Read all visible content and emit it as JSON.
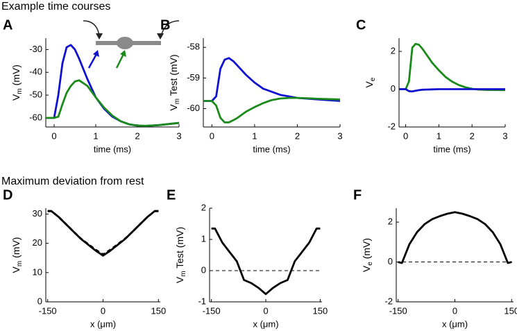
{
  "section_titles": [
    "Example time courses",
    "Maximum deviation from rest"
  ],
  "chart_data": [
    {
      "type": "line",
      "panel_label": "A",
      "xlabel": "time (ms)",
      "ylabel": [
        "V",
        "m",
        " (mV)"
      ],
      "x": [
        -0.2,
        0,
        0.1,
        0.2,
        0.3,
        0.4,
        0.5,
        0.6,
        0.8,
        1.0,
        1.2,
        1.4,
        1.6,
        1.8,
        2.0,
        2.2,
        2.5,
        3.0
      ],
      "series": [
        {
          "color": "#1010d0",
          "values": [
            -60,
            -60,
            -50,
            -36,
            -29,
            -28,
            -30,
            -34,
            -43,
            -51,
            -56,
            -59.5,
            -61.5,
            -62.8,
            -63.4,
            -63.5,
            -63.2,
            -62.2
          ]
        },
        {
          "color": "#1a8a1a",
          "values": [
            -60,
            -60,
            -59.5,
            -54,
            -49,
            -46,
            -44,
            -43.5,
            -46,
            -51,
            -55.5,
            -59,
            -61.5,
            -62.8,
            -63.4,
            -63.5,
            -63.2,
            -62.2
          ]
        }
      ],
      "xlim": [
        -0.2,
        3
      ],
      "ylim": [
        -64,
        -25
      ],
      "xticks": [
        0,
        1,
        2,
        3
      ],
      "yticks": [
        -60,
        -50,
        -40,
        -30
      ]
    },
    {
      "type": "line",
      "panel_label": "B",
      "xlabel": "time (ms)",
      "ylabel": [
        "V",
        "m",
        " Test (mV)"
      ],
      "x": [
        -0.2,
        0,
        0.1,
        0.2,
        0.3,
        0.4,
        0.5,
        0.6,
        0.8,
        1.0,
        1.2,
        1.4,
        1.6,
        1.8,
        2.0,
        2.2,
        2.5,
        3.0
      ],
      "series": [
        {
          "color": "#1010d0",
          "values": [
            -59.75,
            -59.75,
            -59.6,
            -58.7,
            -58.4,
            -58.35,
            -58.45,
            -58.6,
            -58.9,
            -59.15,
            -59.35,
            -59.45,
            -59.55,
            -59.6,
            -59.65,
            -59.67,
            -59.7,
            -59.75
          ]
        },
        {
          "color": "#1a8a1a",
          "values": [
            -59.75,
            -59.75,
            -59.9,
            -60.3,
            -60.45,
            -60.45,
            -60.38,
            -60.3,
            -60.1,
            -59.95,
            -59.82,
            -59.72,
            -59.67,
            -59.65,
            -59.65,
            -59.66,
            -59.68,
            -59.7
          ]
        }
      ],
      "xlim": [
        -0.2,
        3
      ],
      "ylim": [
        -60.6,
        -57.7
      ],
      "xticks": [
        0,
        1,
        2,
        3
      ],
      "yticks": [
        -60,
        -59,
        -58
      ]
    },
    {
      "type": "line",
      "panel_label": "C",
      "xlabel": "time (ms)",
      "ylabel": [
        "V",
        "e",
        ""
      ],
      "x": [
        -0.2,
        0,
        0.1,
        0.2,
        0.3,
        0.4,
        0.5,
        0.6,
        0.8,
        1.0,
        1.2,
        1.4,
        1.6,
        1.8,
        2.0,
        2.2,
        2.5,
        3.0
      ],
      "series": [
        {
          "color": "#1a8a1a",
          "values": [
            0,
            0,
            0.4,
            2.2,
            2.4,
            2.35,
            2.15,
            1.9,
            1.4,
            1.0,
            0.65,
            0.4,
            0.22,
            0.1,
            0.02,
            -0.02,
            -0.04,
            -0.05
          ]
        },
        {
          "color": "#1010d0",
          "values": [
            0,
            0,
            -0.1,
            -0.12,
            -0.08,
            -0.05,
            -0.03,
            -0.02,
            -0.01,
            0,
            0,
            0,
            0,
            0,
            0,
            0,
            0,
            0
          ]
        }
      ],
      "xlim": [
        -0.2,
        3
      ],
      "ylim": [
        -2,
        2.7
      ],
      "xticks": [
        0,
        1,
        2,
        3
      ],
      "yticks": [
        -2,
        0,
        2
      ]
    },
    {
      "type": "line",
      "panel_label": "D",
      "xlabel": "x (μm)",
      "ylabel": [
        "V",
        "m",
        " (mV)"
      ],
      "x": [
        -150,
        -140,
        -120,
        -100,
        -80,
        -60,
        -40,
        -20,
        0,
        20,
        40,
        60,
        80,
        100,
        120,
        140,
        150
      ],
      "series": [
        {
          "color": "#000000",
          "values": [
            31,
            31,
            29,
            26.5,
            24,
            21.5,
            19.5,
            17.5,
            15.8,
            17.5,
            19.5,
            21.5,
            24,
            26.5,
            29,
            31,
            31
          ]
        },
        {
          "color": "#000000",
          "dash": true,
          "values": [
            31,
            31,
            29,
            26.5,
            24,
            21.6,
            19.7,
            17.8,
            16.2,
            17.8,
            19.7,
            21.6,
            24,
            26.5,
            29,
            31,
            31
          ]
        }
      ],
      "xlim": [
        -155,
        155
      ],
      "ylim": [
        0,
        32
      ],
      "xticks": [
        -150,
        0,
        150
      ],
      "yticks": [
        0,
        10,
        20,
        30
      ]
    },
    {
      "type": "line",
      "panel_label": "E",
      "xlabel": "x (μm)",
      "ylabel": [
        "V",
        "m",
        " Test (mV)"
      ],
      "x": [
        -150,
        -140,
        -120,
        -100,
        -80,
        -60,
        -40,
        -20,
        0,
        20,
        40,
        60,
        80,
        100,
        120,
        140,
        150
      ],
      "series": [
        {
          "color": "#000000",
          "values": [
            1.35,
            1.35,
            0.9,
            0.6,
            0.3,
            -0.3,
            -0.4,
            -0.55,
            -0.75,
            -0.55,
            -0.4,
            -0.3,
            0.3,
            0.6,
            0.9,
            1.35,
            1.35
          ]
        }
      ],
      "hline": 0,
      "xlim": [
        -155,
        155
      ],
      "ylim": [
        -1,
        2
      ],
      "xticks": [
        -150,
        0,
        150
      ],
      "yticks": [
        -1,
        0,
        1,
        2
      ]
    },
    {
      "type": "line",
      "panel_label": "F",
      "xlabel": "x (μm)",
      "ylabel": [
        "V",
        "e",
        " (mV)"
      ],
      "x": [
        -150,
        -140,
        -120,
        -100,
        -80,
        -60,
        -40,
        -20,
        0,
        20,
        40,
        60,
        80,
        100,
        120,
        140,
        150
      ],
      "series": [
        {
          "color": "#000000",
          "values": [
            0,
            -0.05,
            0.9,
            1.5,
            1.9,
            2.15,
            2.3,
            2.42,
            2.5,
            2.42,
            2.3,
            2.15,
            1.9,
            1.5,
            0.9,
            -0.05,
            0
          ]
        }
      ],
      "hline": 0,
      "xlim": [
        -155,
        155
      ],
      "ylim": [
        -2,
        2.7
      ],
      "xticks": [
        -150,
        0,
        150
      ],
      "yticks": [
        -2,
        0,
        2
      ]
    }
  ]
}
